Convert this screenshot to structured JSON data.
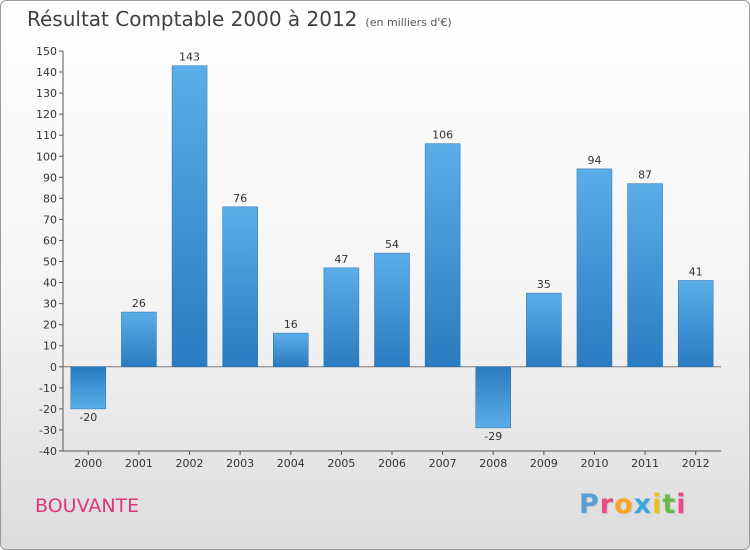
{
  "header": {
    "title": "Résultat Comptable 2000 à 2012",
    "subtitle": "(en milliers d'€)"
  },
  "footer": {
    "place": "BOUVANTE",
    "brand_letters": [
      "P",
      "r",
      "o",
      "x",
      "i",
      "t",
      "i"
    ],
    "brand_colors": [
      "#5a9fd4",
      "#e94a8a",
      "#f5a623",
      "#3aa7d9",
      "#e8c020",
      "#68b84a",
      "#e94a8a"
    ]
  },
  "chart_data": {
    "type": "bar",
    "title": "Résultat Comptable 2000 à 2012",
    "subtitle": "(en milliers d'€)",
    "xlabel": "",
    "ylabel": "",
    "categories": [
      "2000",
      "2001",
      "2002",
      "2003",
      "2004",
      "2005",
      "2006",
      "2007",
      "2008",
      "2009",
      "2010",
      "2011",
      "2012"
    ],
    "values": [
      -20,
      26,
      143,
      76,
      16,
      47,
      54,
      106,
      -29,
      35,
      94,
      87,
      41
    ],
    "ylim": [
      -40,
      150
    ],
    "ytick_step": 10,
    "grid": false,
    "bar_color": "#3d8fd3"
  }
}
